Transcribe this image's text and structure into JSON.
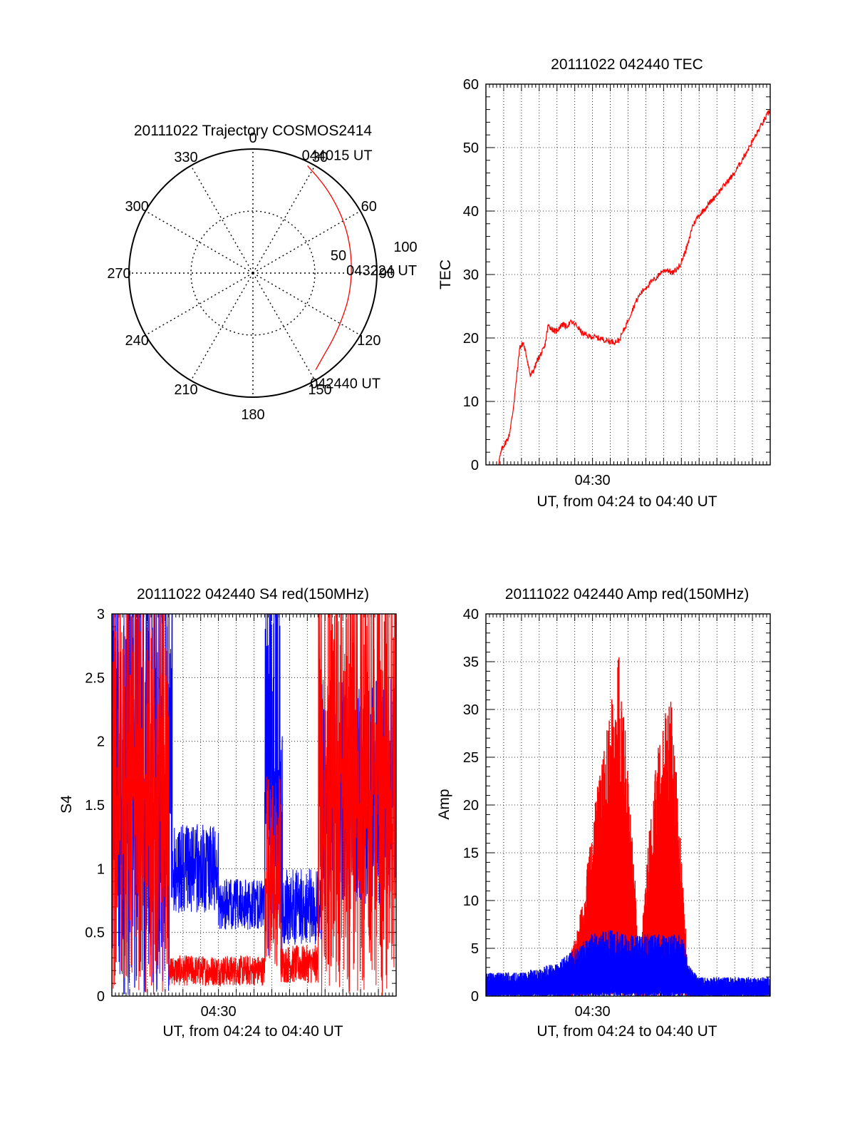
{
  "colors": {
    "red": "#ff0000",
    "blue": "#0000ff",
    "grid": "#000000"
  },
  "chart_data": [
    {
      "type": "polar",
      "title": "20111022 Trajectory COSMOS2414",
      "angle_labels": [
        "0",
        "30",
        "60",
        "90",
        "120",
        "150",
        "180",
        "210",
        "240",
        "270",
        "300",
        "330"
      ],
      "radius_labels": [
        "50",
        "100"
      ],
      "rlim": [
        0,
        100
      ],
      "direction": "clockwise from top",
      "series": [
        {
          "color": "#ff0000",
          "azimuth_deg": [
            27,
            35,
            45,
            58,
            72,
            88,
            104,
            118,
            130,
            140,
            147
          ],
          "radius": [
            97,
            93,
            89,
            85,
            82,
            80,
            80,
            81,
            84,
            88,
            93
          ]
        }
      ],
      "annotations": [
        {
          "text": "044015 UT",
          "azimuth_deg": 27,
          "radius": 97
        },
        {
          "text": "043224 UT",
          "azimuth_deg": 88,
          "radius": 80
        },
        {
          "text": "042440 UT",
          "azimuth_deg": 147,
          "radius": 93
        }
      ]
    },
    {
      "type": "line",
      "title": "20111022 042440 TEC",
      "xlabel": "UT, from 04:24 to 04:40 UT",
      "ylabel": "TEC",
      "xtick_labels": [
        {
          "x": 6,
          "label": "04:30"
        }
      ],
      "xlim": [
        0,
        16
      ],
      "ylim": [
        0,
        60
      ],
      "yticks": [
        0,
        10,
        20,
        30,
        40,
        50,
        60
      ],
      "grid": true,
      "series": [
        {
          "color": "#ff0000",
          "x": [
            0.7,
            0.9,
            1.1,
            1.3,
            1.5,
            1.7,
            1.9,
            2.1,
            2.3,
            2.5,
            2.7,
            2.9,
            3.1,
            3.3,
            3.5,
            3.7,
            3.9,
            4.1,
            4.3,
            4.5,
            4.8,
            5.1,
            5.4,
            5.7,
            6.0,
            6.3,
            6.6,
            6.9,
            7.2,
            7.5,
            7.8,
            8.1,
            8.4,
            8.7,
            9.0,
            9.3,
            9.6,
            9.9,
            10.2,
            10.5,
            10.8,
            11.0,
            11.2,
            11.4,
            11.6,
            11.9,
            12.2,
            12.5,
            12.8,
            13.1,
            13.4,
            13.7,
            14.0,
            14.3,
            14.6,
            14.9,
            15.2,
            15.5,
            15.8,
            16.0
          ],
          "y": [
            0.2,
            2.5,
            3.5,
            4.5,
            8.0,
            13.0,
            18.5,
            19.2,
            17.0,
            14.0,
            15.0,
            16.5,
            17.5,
            18.5,
            22.0,
            21.5,
            21.0,
            21.5,
            22.2,
            21.8,
            22.5,
            22.0,
            20.8,
            20.3,
            20.2,
            20.0,
            19.8,
            19.5,
            19.4,
            19.6,
            21.5,
            23.5,
            25.5,
            27.0,
            28.0,
            28.8,
            29.5,
            30.5,
            30.8,
            30.2,
            31.0,
            32.0,
            33.5,
            35.0,
            37.5,
            39.0,
            40.0,
            41.0,
            42.0,
            43.0,
            44.0,
            45.0,
            46.0,
            47.5,
            49.0,
            50.5,
            52.0,
            53.5,
            55.0,
            56.0
          ]
        }
      ]
    },
    {
      "type": "line",
      "title": "20111022 042440 S4 red(150MHz)",
      "xlabel": "UT, from 04:24 to 04:40 UT",
      "ylabel": "S4",
      "xtick_labels": [
        {
          "x": 6,
          "label": "04:30"
        }
      ],
      "xlim": [
        0,
        16
      ],
      "ylim": [
        0,
        3
      ],
      "yticks": [
        0,
        0.5,
        1,
        1.5,
        2,
        2.5,
        3
      ],
      "ytick_labels": [
        "0",
        "0.5",
        "1",
        "1.5",
        "2",
        "2.5",
        "3"
      ],
      "grid": true,
      "series": [
        {
          "color": "#0000ff",
          "segments": [
            {
              "x": [
                0.0,
                3.4
              ],
              "range": [
                0.0,
                3.0
              ]
            },
            {
              "x": [
                3.4,
                6.0
              ],
              "mean": 1.0,
              "spread": 0.35
            },
            {
              "x": [
                6.0,
                8.6
              ],
              "mean": 0.72,
              "spread": 0.2
            },
            {
              "x": [
                8.6,
                9.6
              ],
              "range": [
                0.3,
                3.0
              ]
            },
            {
              "x": [
                9.6,
                11.8
              ],
              "mean": 0.7,
              "spread": 0.3
            },
            {
              "x": [
                11.8,
                16.0
              ],
              "mean": 1.6,
              "spread": 0.9
            }
          ]
        },
        {
          "color": "#ff0000",
          "segments": [
            {
              "x": [
                0.0,
                3.2
              ],
              "range": [
                0.0,
                3.0
              ]
            },
            {
              "x": [
                3.2,
                8.6
              ],
              "mean": 0.2,
              "spread": 0.12
            },
            {
              "x": [
                8.6,
                9.5
              ],
              "range": [
                0.2,
                1.5
              ]
            },
            {
              "x": [
                9.5,
                11.6
              ],
              "mean": 0.25,
              "spread": 0.15
            },
            {
              "x": [
                11.6,
                16.0
              ],
              "range": [
                0.0,
                3.0
              ]
            }
          ]
        }
      ]
    },
    {
      "type": "line",
      "title": "20111022 042440 Amp red(150MHz)",
      "xlabel": "UT, from 04:24 to 04:40 UT",
      "ylabel": "Amp",
      "xtick_labels": [
        {
          "x": 6,
          "label": "04:30"
        }
      ],
      "xlim": [
        0,
        16
      ],
      "ylim": [
        0,
        40
      ],
      "yticks": [
        0,
        5,
        10,
        15,
        20,
        25,
        30,
        35,
        40
      ],
      "grid": true,
      "series": [
        {
          "color": "#ff0000",
          "envelope": {
            "x": [
              4.0,
              4.5,
              5.0,
              5.5,
              6.0,
              6.5,
              7.0,
              7.5,
              8.0,
              8.4,
              8.6,
              9.2,
              9.8,
              10.4,
              11.0,
              11.4
            ],
            "upper": [
              1.0,
              3.0,
              6.0,
              11.0,
              18.0,
              25.0,
              30.0,
              37.0,
              24.0,
              12.0,
              2.0,
              18.0,
              28.0,
              32.0,
              16.0,
              1.0
            ]
          }
        },
        {
          "color": "#0000ff",
          "envelope": {
            "x": [
              0.0,
              2.0,
              4.0,
              5.0,
              6.0,
              7.0,
              8.0,
              9.0,
              10.0,
              11.0,
              11.5,
              12.0,
              14.0,
              16.0
            ],
            "upper": [
              2.5,
              2.5,
              3.5,
              5.0,
              6.5,
              7.0,
              6.5,
              6.5,
              6.5,
              6.5,
              3.0,
              2.0,
              2.0,
              2.0
            ]
          }
        }
      ]
    }
  ]
}
